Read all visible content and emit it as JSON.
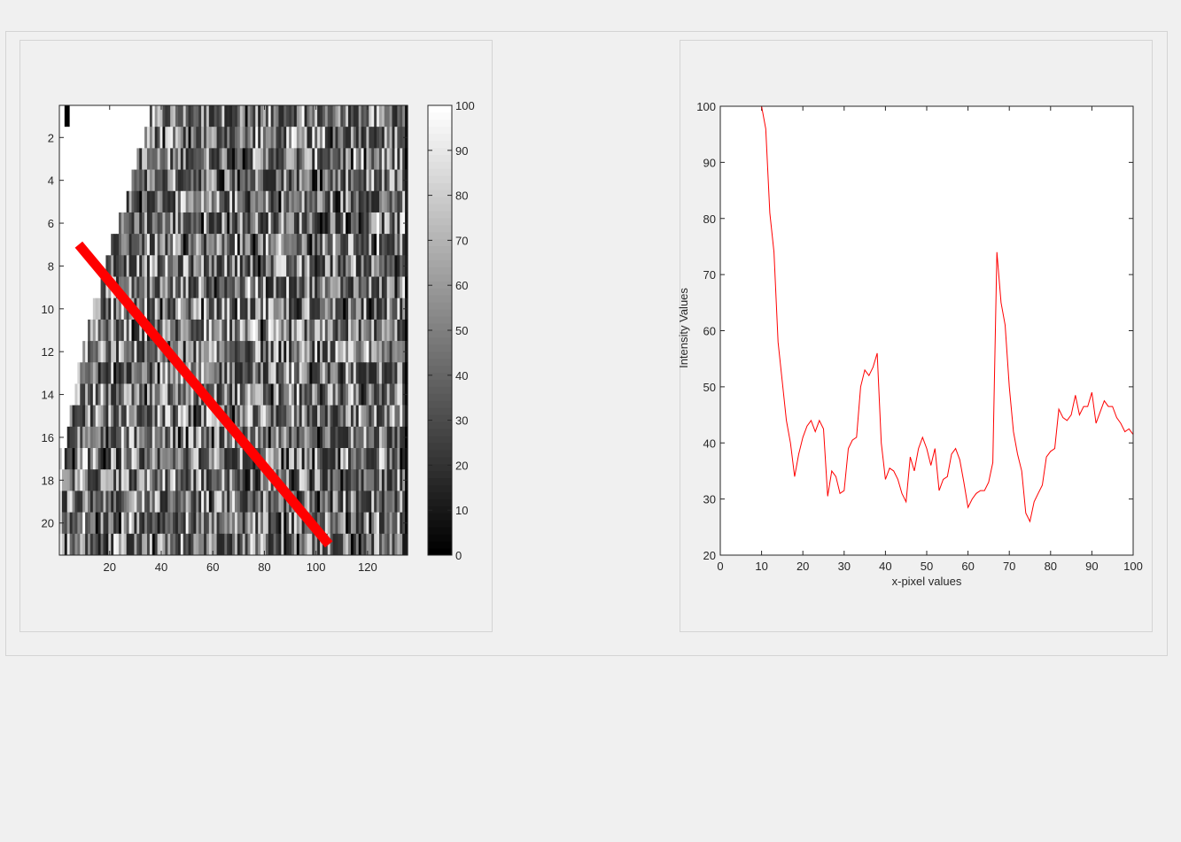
{
  "chart_data": [
    {
      "type": "heatmap",
      "title": "",
      "xlabel": "",
      "ylabel": "",
      "rows": 21,
      "cols": 135,
      "xlim": [
        0.5,
        135.5
      ],
      "ylim": [
        0.5,
        21.5
      ],
      "colormap": "gray",
      "x_ticks": [
        20,
        40,
        60,
        80,
        100,
        120
      ],
      "y_ticks": [
        2,
        4,
        6,
        8,
        10,
        12,
        14,
        16,
        18,
        20
      ],
      "colorbar": {
        "min": 0,
        "max": 100,
        "ticks": [
          0,
          10,
          20,
          30,
          40,
          50,
          60,
          70,
          80,
          90,
          100
        ]
      },
      "saturated_left_region_end_col_per_row": [
        35,
        33,
        30,
        28,
        26,
        23,
        20,
        18,
        16,
        13,
        11,
        9,
        7,
        6,
        4,
        3,
        2,
        1,
        1,
        1,
        1
      ],
      "overlay_line": {
        "color": "#ff0000",
        "from": [
          8,
          7
        ],
        "to": [
          105,
          21
        ]
      }
    },
    {
      "type": "line",
      "title": "",
      "xlabel": "x-pixel values",
      "ylabel": "Intensity Values",
      "xlim": [
        0,
        100
      ],
      "ylim": [
        20,
        100
      ],
      "x_ticks": [
        0,
        10,
        20,
        30,
        40,
        50,
        60,
        70,
        80,
        90,
        100
      ],
      "y_ticks": [
        20,
        30,
        40,
        50,
        60,
        70,
        80,
        90,
        100
      ],
      "color": "#ff0000",
      "series": [
        {
          "x": [
            10,
            11,
            12,
            13,
            14,
            15,
            16,
            17,
            18,
            19,
            20,
            21,
            22,
            23,
            24,
            25,
            26,
            27,
            28,
            29,
            30,
            31,
            32,
            33,
            34,
            35,
            36,
            37,
            38,
            39,
            40,
            41,
            42,
            43,
            44,
            45,
            46,
            47,
            48,
            49,
            50,
            51,
            52,
            53,
            54,
            55,
            56,
            57,
            58,
            59,
            60,
            61,
            62,
            63,
            64,
            65,
            66,
            67,
            68,
            69,
            70,
            71,
            72,
            73,
            74,
            75,
            76,
            77,
            78,
            79,
            80,
            81,
            82,
            83,
            84,
            85,
            86,
            87,
            88,
            89,
            90,
            91,
            92,
            93,
            94,
            95,
            96,
            97,
            98,
            99,
            100
          ],
          "values": [
            100,
            96,
            81,
            74,
            58,
            51,
            44,
            40,
            34,
            38,
            41,
            43,
            44,
            42,
            44,
            42.5,
            30.5,
            35,
            34,
            31,
            31.5,
            39,
            40.5,
            41,
            50,
            53,
            52,
            53.5,
            56,
            40,
            33.5,
            35.5,
            35,
            33.5,
            31,
            29.5,
            37.5,
            35,
            39,
            41,
            39,
            36,
            39,
            31.5,
            33.5,
            34,
            38,
            39,
            37,
            33,
            28.5,
            30,
            31,
            31.5,
            31.5,
            33,
            36.5,
            74,
            65,
            61,
            50,
            42,
            38,
            35,
            27.5,
            26,
            29.5,
            31,
            32.5,
            37.5,
            38.5,
            39,
            46,
            44.5,
            44,
            45,
            48.5,
            45,
            46.5,
            46.5,
            49,
            43.5,
            45.5,
            47.5,
            46.5,
            46.5,
            44.5,
            43.5,
            42,
            42.5,
            41.5
          ]
        }
      ]
    }
  ]
}
